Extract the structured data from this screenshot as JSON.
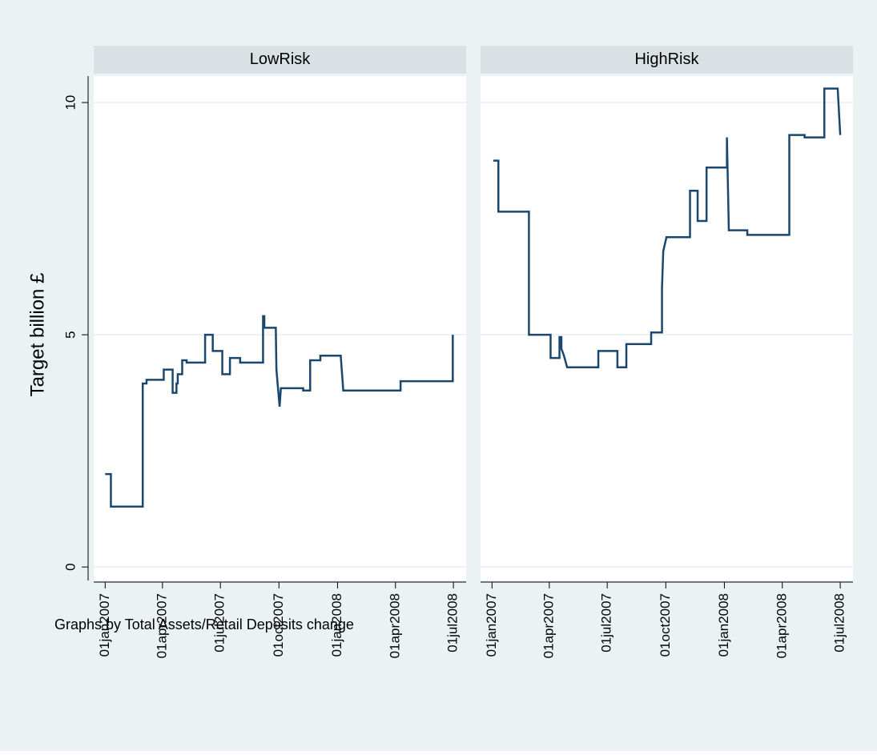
{
  "y_axis_label": "Target billion £",
  "note": "Graphs by Total Assets/Retail Deposits change",
  "chart_data": [
    {
      "type": "line",
      "title": "LowRisk",
      "show_y_axis": true,
      "grid": true,
      "xlim": [
        "2006-12-14",
        "2008-07-21"
      ],
      "ylim": [
        -0.29,
        10.57
      ],
      "yticks": [
        0,
        5,
        10
      ],
      "xticks": [
        {
          "value": "2007-01-01",
          "label": "01jan2007"
        },
        {
          "value": "2007-04-01",
          "label": "01apr2007"
        },
        {
          "value": "2007-07-01",
          "label": "01jul2007"
        },
        {
          "value": "2007-10-01",
          "label": "01oct2007"
        },
        {
          "value": "2008-01-01",
          "label": "01jan2008"
        },
        {
          "value": "2008-04-01",
          "label": "01apr2008"
        },
        {
          "value": "2008-07-01",
          "label": "01jul2008"
        }
      ],
      "x": [
        "2007-01-01",
        "2007-01-10",
        "2007-01-10",
        "2007-03-01",
        "2007-03-01",
        "2007-03-07",
        "2007-03-07",
        "2007-04-03",
        "2007-04-03",
        "2007-04-17",
        "2007-04-17",
        "2007-04-23",
        "2007-04-23",
        "2007-04-25",
        "2007-04-25",
        "2007-05-02",
        "2007-05-02",
        "2007-05-09",
        "2007-05-09",
        "2007-06-07",
        "2007-06-07",
        "2007-06-19",
        "2007-06-19",
        "2007-07-04",
        "2007-07-04",
        "2007-07-16",
        "2007-07-16",
        "2007-08-01",
        "2007-08-01",
        "2007-09-06",
        "2007-09-06",
        "2007-09-08",
        "2007-09-08",
        "2007-09-26",
        "2007-09-27",
        "2007-10-02",
        "2007-10-04",
        "2007-11-08",
        "2007-11-08",
        "2007-11-19",
        "2007-11-19",
        "2007-12-05",
        "2007-12-05",
        "2008-01-06",
        "2008-01-10",
        "2008-04-09",
        "2008-04-09",
        "2008-06-30",
        "2008-06-30"
      ],
      "series": [
        {
          "color": "#1a476f",
          "values": [
            2.0,
            2.0,
            1.3,
            1.3,
            3.95,
            3.95,
            4.03,
            4.03,
            4.25,
            4.25,
            3.75,
            3.75,
            3.95,
            3.95,
            4.15,
            4.15,
            4.45,
            4.45,
            4.4,
            4.4,
            5.0,
            5.0,
            4.65,
            4.65,
            4.15,
            4.15,
            4.5,
            4.5,
            4.4,
            4.4,
            5.4,
            5.4,
            5.15,
            5.15,
            4.25,
            3.45,
            3.85,
            3.85,
            3.8,
            3.8,
            4.45,
            4.45,
            4.55,
            4.55,
            3.8,
            3.8,
            4.0,
            4.0,
            5.0
          ]
        }
      ]
    },
    {
      "type": "line",
      "title": "HighRisk",
      "show_y_axis": false,
      "grid": true,
      "xlim": [
        "2006-12-14",
        "2008-07-21"
      ],
      "ylim": [
        -0.29,
        10.57
      ],
      "yticks": [
        0,
        5,
        10
      ],
      "xticks": [
        {
          "value": "2007-01-01",
          "label": "01jan2007"
        },
        {
          "value": "2007-04-01",
          "label": "01apr2007"
        },
        {
          "value": "2007-07-01",
          "label": "01jul2007"
        },
        {
          "value": "2007-10-01",
          "label": "01oct2007"
        },
        {
          "value": "2008-01-01",
          "label": "01jan2008"
        },
        {
          "value": "2008-04-01",
          "label": "01apr2008"
        },
        {
          "value": "2008-07-01",
          "label": "01jul2008"
        }
      ],
      "x": [
        "2007-01-03",
        "2007-01-11",
        "2007-01-11",
        "2007-02-28",
        "2007-02-28",
        "2007-04-03",
        "2007-04-03",
        "2007-04-17",
        "2007-04-17",
        "2007-04-20",
        "2007-04-20",
        "2007-04-24",
        "2007-04-29",
        "2007-06-17",
        "2007-06-17",
        "2007-07-17",
        "2007-07-17",
        "2007-07-31",
        "2007-07-31",
        "2007-09-08",
        "2007-09-08",
        "2007-09-25",
        "2007-09-25",
        "2007-09-27",
        "2007-10-02",
        "2007-11-08",
        "2007-11-08",
        "2007-11-20",
        "2007-11-20",
        "2007-12-04",
        "2007-12-04",
        "2008-01-05",
        "2008-01-05",
        "2008-01-08",
        "2008-02-06",
        "2008-02-06",
        "2008-04-12",
        "2008-04-12",
        "2008-05-06",
        "2008-05-06",
        "2008-06-06",
        "2008-06-06",
        "2008-06-27",
        "2008-07-01"
      ],
      "series": [
        {
          "color": "#1a476f",
          "values": [
            8.75,
            8.75,
            7.65,
            7.65,
            5.0,
            5.0,
            4.5,
            4.5,
            4.95,
            4.95,
            4.7,
            4.55,
            4.3,
            4.3,
            4.65,
            4.65,
            4.3,
            4.3,
            4.8,
            4.8,
            5.05,
            5.05,
            6.0,
            6.8,
            7.1,
            7.1,
            8.1,
            8.1,
            7.45,
            7.45,
            8.6,
            8.6,
            9.25,
            7.25,
            7.25,
            7.15,
            7.15,
            9.3,
            9.3,
            9.25,
            9.25,
            10.3,
            10.3,
            9.3
          ]
        }
      ]
    }
  ]
}
